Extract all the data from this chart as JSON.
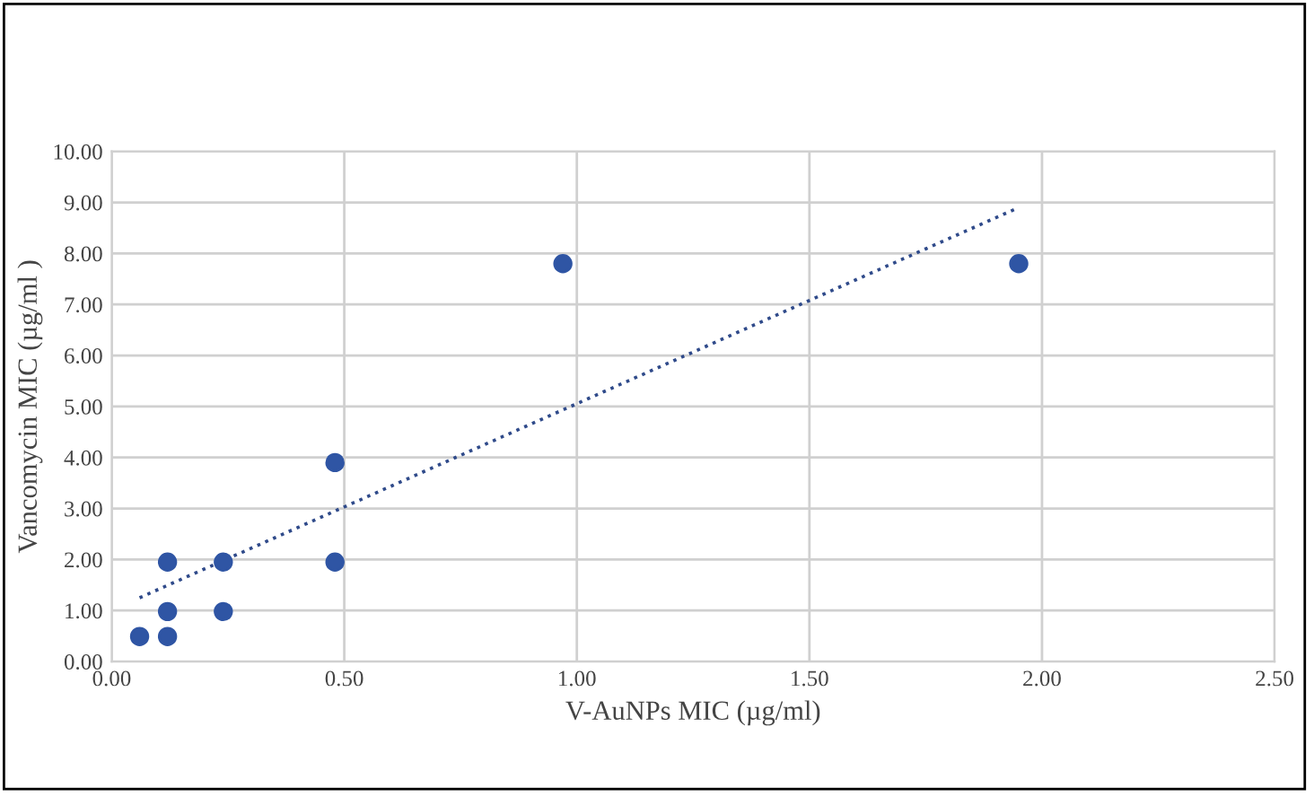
{
  "chart_data": {
    "type": "scatter",
    "xlabel": "V-AuNPs MIC (µg/ml)",
    "ylabel": "Vancomycin MIC (µg/ml )",
    "series": [
      {
        "color": "#2f55a4",
        "marker": "circle",
        "x": [
          0.06,
          0.12,
          0.12,
          0.12,
          0.24,
          0.24,
          0.48,
          0.48,
          0.97,
          1.95
        ],
        "values": [
          0.49,
          0.49,
          0.98,
          1.95,
          0.98,
          1.95,
          1.95,
          3.9,
          7.8,
          7.8
        ]
      },
      {
        "type": "line",
        "color": "#2f4a8a",
        "line_style": "dotted",
        "x": [
          0.06,
          1.95
        ],
        "values": [
          1.25,
          8.9
        ]
      }
    ],
    "xlim": [
      0,
      2.5
    ],
    "xticks": [
      {
        "value": 0,
        "label": "0.00"
      },
      {
        "value": 0.5,
        "label": "0.50"
      },
      {
        "value": 1,
        "label": "1.00"
      },
      {
        "value": 1.5,
        "label": "1.50"
      },
      {
        "value": 2,
        "label": "2.00"
      },
      {
        "value": 2.5,
        "label": "2.50"
      }
    ],
    "ylim": [
      0,
      10
    ],
    "yticks": [
      {
        "value": 0,
        "label": "0.00"
      },
      {
        "value": 1,
        "label": "1.00"
      },
      {
        "value": 2,
        "label": "2.00"
      },
      {
        "value": 3,
        "label": "3.00"
      },
      {
        "value": 4,
        "label": "4.00"
      },
      {
        "value": 5,
        "label": "5.00"
      },
      {
        "value": 6,
        "label": "6.00"
      },
      {
        "value": 7,
        "label": "7.00"
      },
      {
        "value": 8,
        "label": "8.00"
      },
      {
        "value": 9,
        "label": "9.00"
      },
      {
        "value": 10,
        "label": "10.00"
      }
    ],
    "grid": true
  }
}
